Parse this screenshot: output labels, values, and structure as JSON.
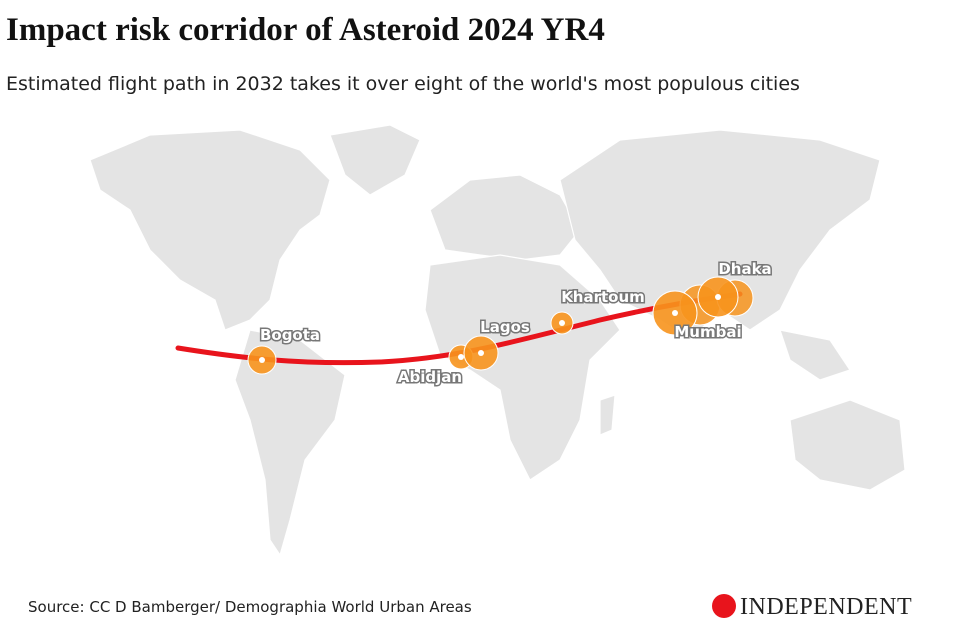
{
  "title": "Impact risk corridor of Asteroid 2024 YR4",
  "subtitle": "Estimated flight path in 2032 takes it over eight of the world's most populous cities",
  "cities": [
    {
      "label": "Bogota"
    },
    {
      "label": "Abidjan"
    },
    {
      "label": "Lagos"
    },
    {
      "label": "Khartoum"
    },
    {
      "label": "Mumbai"
    },
    {
      "label": "Dhaka"
    }
  ],
  "source": "Source: CC D Bamberger/ Demographia World Urban Areas",
  "logo": "INDEPENDENT"
}
